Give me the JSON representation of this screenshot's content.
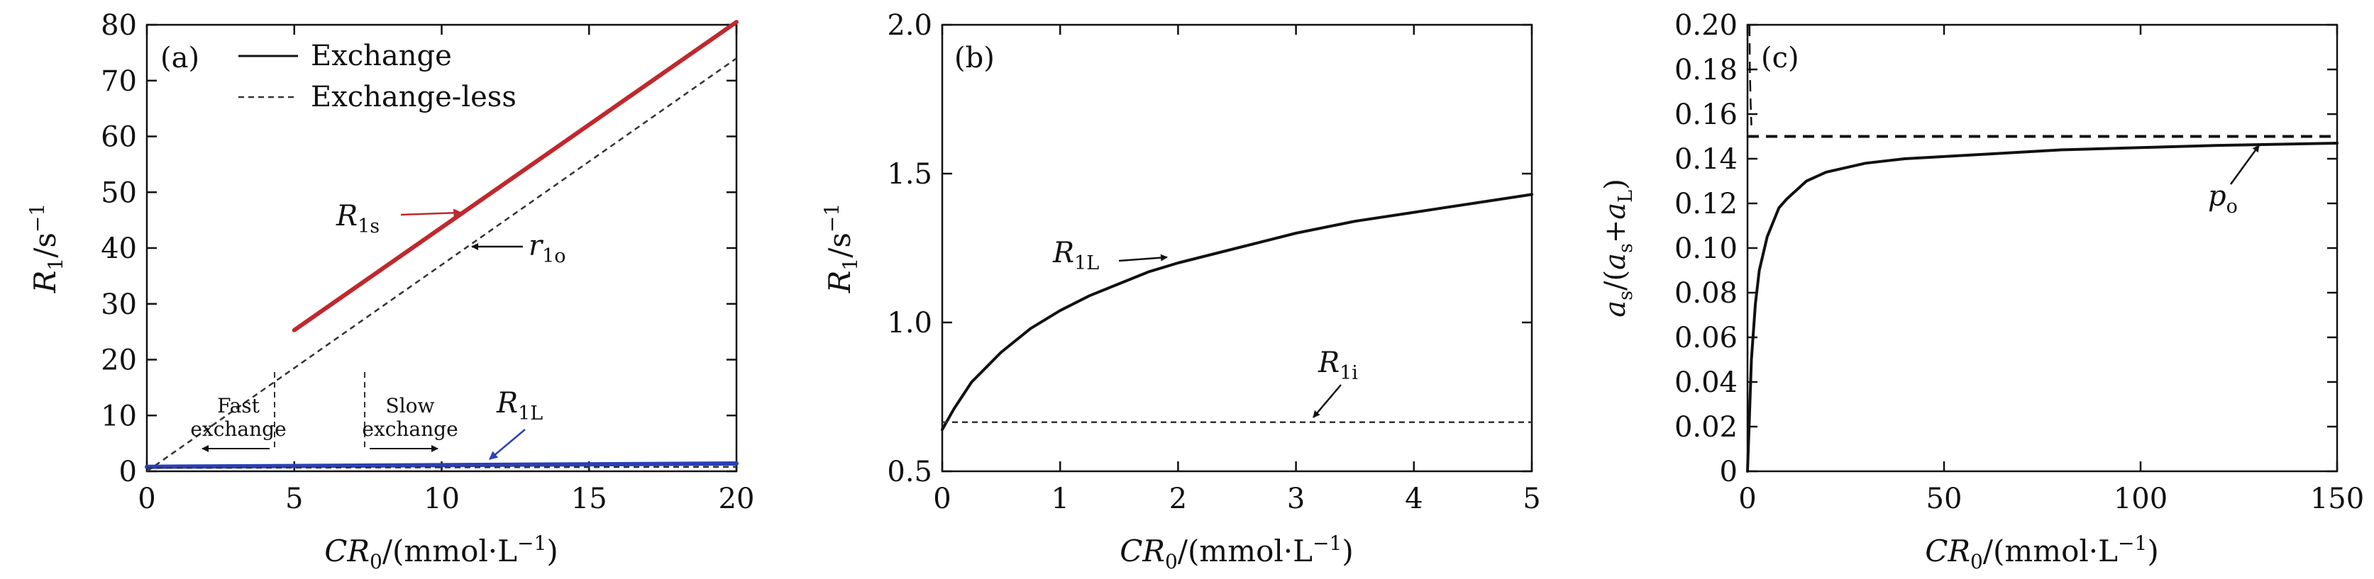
{
  "chart_data": [
    {
      "type": "line",
      "panel_label": "(a)",
      "xlabel": "CR0/(mmol·L^-1)",
      "ylabel": "R1/s^-1",
      "xlim": [
        0,
        20
      ],
      "ylim": [
        0,
        80
      ],
      "xticks": [
        "0",
        "5",
        "10",
        "15",
        "20"
      ],
      "yticks": [
        "0",
        "10",
        "20",
        "30",
        "40",
        "50",
        "60",
        "70",
        "80"
      ],
      "legend": {
        "position": "top-left",
        "entries": [
          "Exchange",
          "Exchange-less"
        ]
      },
      "series": [
        {
          "name": "Exchange",
          "label": "R1s",
          "color": "#c0282c",
          "style": "solid",
          "x": [
            5,
            20
          ],
          "y": [
            25.3,
            80.5
          ]
        },
        {
          "name": "Exchange-less",
          "label": "r1o",
          "color": "#333333",
          "style": "dashed",
          "x": [
            0,
            20
          ],
          "y": [
            0,
            74
          ]
        },
        {
          "label": "R1L",
          "color": "#2a3fb8",
          "style": "solid",
          "x": [
            0,
            20
          ],
          "y": [
            0.8,
            1.4
          ]
        },
        {
          "color": "#333333",
          "style": "dashed",
          "x": [
            0,
            20
          ],
          "y": [
            0.6,
            0.8
          ]
        }
      ],
      "annotations": {
        "fast_label_1": "Fast",
        "fast_label_2": "exchange",
        "slow_label_1": "Slow",
        "slow_label_2": "exchange",
        "fast_boundary_x": 4.3,
        "slow_boundary_x": 7.4
      }
    },
    {
      "type": "line",
      "panel_label": "(b)",
      "xlabel": "CR0/(mmol·L^-1)",
      "ylabel": "R1/s^-1",
      "xlim": [
        0,
        5
      ],
      "ylim": [
        0.5,
        2.0
      ],
      "xticks": [
        "0",
        "1",
        "2",
        "3",
        "4",
        "5"
      ],
      "yticks": [
        "0.5",
        "1.0",
        "1.5",
        "2.0"
      ],
      "series": [
        {
          "label": "R1L",
          "style": "solid",
          "color": "#111111",
          "x": [
            0,
            0.1,
            0.25,
            0.5,
            0.75,
            1,
            1.25,
            1.5,
            1.75,
            2,
            2.5,
            3,
            3.5,
            4,
            4.5,
            5
          ],
          "y": [
            0.64,
            0.71,
            0.8,
            0.9,
            0.98,
            1.04,
            1.09,
            1.13,
            1.17,
            1.2,
            1.25,
            1.3,
            1.34,
            1.37,
            1.4,
            1.43
          ]
        },
        {
          "label": "R1i",
          "style": "dashed",
          "color": "#333333",
          "x": [
            0,
            5
          ],
          "y": [
            0.665,
            0.665
          ]
        }
      ]
    },
    {
      "type": "line",
      "panel_label": "(c)",
      "xlabel": "CR0/(mmol·L^-1)",
      "ylabel": "as/(as+aL)",
      "xlim": [
        0,
        150
      ],
      "ylim": [
        0,
        0.2
      ],
      "xticks": [
        "0",
        "50",
        "100",
        "150"
      ],
      "yticks": [
        "0",
        "0.02",
        "0.04",
        "0.06",
        "0.08",
        "0.10",
        "0.12",
        "0.14",
        "0.16",
        "0.18",
        "0.20"
      ],
      "series": [
        {
          "label": "po",
          "style": "dashed",
          "color": "#111111",
          "x": [
            0,
            150
          ],
          "y": [
            0.15,
            0.15
          ]
        },
        {
          "style": "solid",
          "color": "#111111",
          "x": [
            0,
            1,
            2,
            3,
            5,
            8,
            10,
            15,
            20,
            30,
            40,
            50,
            60,
            80,
            100,
            120,
            150
          ],
          "y": [
            0,
            0.05,
            0.075,
            0.09,
            0.105,
            0.118,
            0.122,
            0.13,
            0.134,
            0.138,
            0.14,
            0.141,
            0.142,
            0.144,
            0.145,
            0.146,
            0.147
          ]
        },
        {
          "style": "dashed",
          "color": "#111111",
          "x": [
            0.5,
            0.6,
            0.8,
            1.0
          ],
          "y": [
            0.2,
            0.18,
            0.165,
            0.155
          ]
        }
      ]
    }
  ]
}
